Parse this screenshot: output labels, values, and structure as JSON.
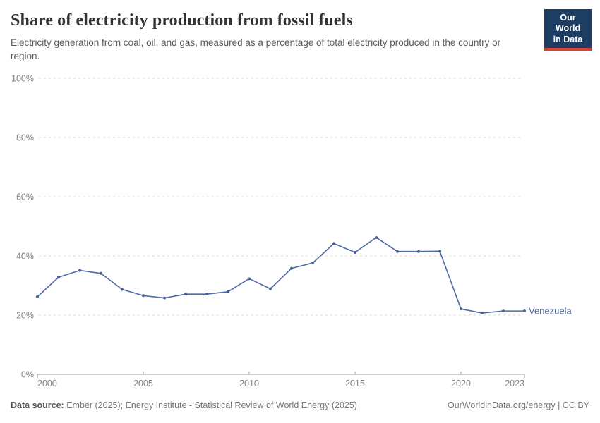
{
  "header": {
    "title": "Share of electricity production from fossil fuels",
    "subtitle": "Electricity generation from coal, oil, and gas, measured as a percentage of total electricity produced in the country or region."
  },
  "logo": {
    "line1": "Our World",
    "line2": "in Data",
    "bg_color": "#1d3d63",
    "accent_color": "#dc3f34"
  },
  "chart_data": {
    "type": "line",
    "title": "Share of electricity production from fossil fuels",
    "xlabel": "",
    "ylabel": "",
    "x": [
      2000,
      2001,
      2002,
      2003,
      2004,
      2005,
      2006,
      2007,
      2008,
      2009,
      2010,
      2011,
      2012,
      2013,
      2014,
      2015,
      2016,
      2017,
      2018,
      2019,
      2020,
      2021,
      2022,
      2023
    ],
    "series": [
      {
        "name": "Venezuela",
        "color": "#4e6ba7",
        "marker_color": "#44619b",
        "values": [
          26.2,
          32.8,
          35.1,
          34.1,
          28.7,
          26.6,
          25.8,
          27.1,
          27.1,
          27.9,
          32.3,
          28.9,
          35.8,
          37.6,
          44.2,
          41.2,
          46.2,
          41.5,
          41.5,
          41.6,
          22.1,
          20.7,
          21.4,
          21.4
        ]
      }
    ],
    "ylim": [
      0,
      100
    ],
    "yticks": [
      0,
      20,
      40,
      60,
      80,
      100
    ],
    "ytick_labels": [
      "0%",
      "20%",
      "40%",
      "60%",
      "80%",
      "100%"
    ],
    "xticks": [
      2000,
      2005,
      2010,
      2015,
      2020,
      2023
    ],
    "xtick_labels": [
      "2000",
      "2005",
      "2010",
      "2015",
      "2020",
      "2023"
    ],
    "grid": "horizontal-dashed",
    "grid_color": "#dadada",
    "axis_color": "#999999",
    "tick_label_color": "#808080",
    "legend_position": "end-of-line-label"
  },
  "footer": {
    "source_label": "Data source:",
    "source_text": "Ember (2025); Energy Institute - Statistical Review of World Energy (2025)",
    "credit": "OurWorldinData.org/energy | CC BY"
  }
}
